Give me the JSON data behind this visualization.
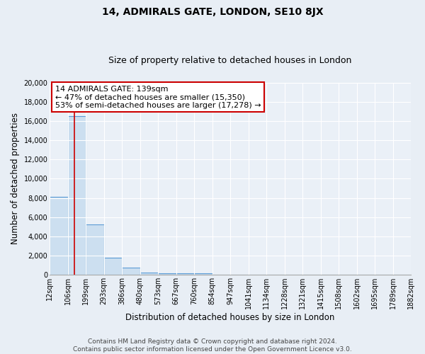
{
  "title": "14, ADMIRALS GATE, LONDON, SE10 8JX",
  "subtitle": "Size of property relative to detached houses in London",
  "xlabel": "Distribution of detached houses by size in London",
  "ylabel": "Number of detached properties",
  "bin_labels": [
    "12sqm",
    "106sqm",
    "199sqm",
    "293sqm",
    "386sqm",
    "480sqm",
    "573sqm",
    "667sqm",
    "760sqm",
    "854sqm",
    "947sqm",
    "1041sqm",
    "1134sqm",
    "1228sqm",
    "1321sqm",
    "1415sqm",
    "1508sqm",
    "1602sqm",
    "1695sqm",
    "1789sqm",
    "1882sqm"
  ],
  "bar_values": [
    8100,
    16500,
    5250,
    1800,
    750,
    250,
    150,
    125,
    150,
    0,
    0,
    0,
    0,
    0,
    0,
    0,
    0,
    0,
    0,
    0
  ],
  "ylim": [
    0,
    20000
  ],
  "yticks": [
    0,
    2000,
    4000,
    6000,
    8000,
    10000,
    12000,
    14000,
    16000,
    18000,
    20000
  ],
  "bar_color": "#ccdff0",
  "bar_edge_color": "#5b9bd5",
  "property_value": "139sqm",
  "pct_smaller": 47,
  "n_smaller": 15350,
  "pct_larger_semi": 53,
  "n_larger_semi": 17278,
  "red_line_color": "#cc0000",
  "annotation_box_color": "#ffffff",
  "annotation_box_edge": "#cc0000",
  "footer_line1": "Contains HM Land Registry data © Crown copyright and database right 2024.",
  "footer_line2": "Contains public sector information licensed under the Open Government Licence v3.0.",
  "bg_color": "#e8eef5",
  "plot_bg_color": "#eaf0f7",
  "grid_color": "#ffffff",
  "title_fontsize": 10,
  "subtitle_fontsize": 9,
  "axis_label_fontsize": 8.5,
  "tick_fontsize": 7,
  "annot_fontsize": 8,
  "footer_fontsize": 6.5
}
